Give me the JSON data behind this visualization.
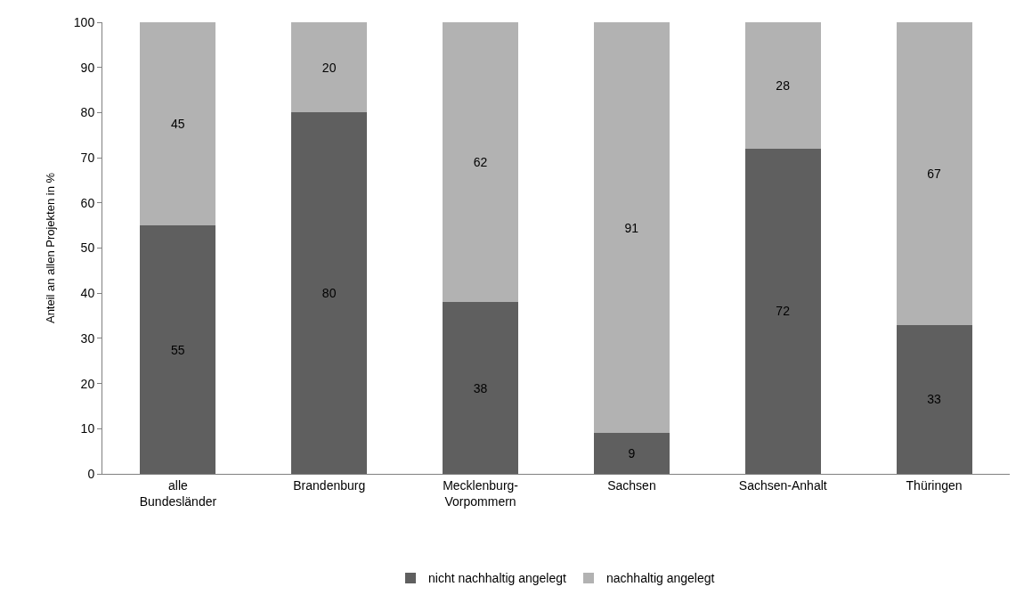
{
  "chart_data": {
    "type": "bar",
    "stacked": true,
    "ylabel": "Anteil an allen Projekten in %",
    "categories": [
      "alle Bundesländer",
      "Brandenburg",
      "Mecklenburg-Vorpommern",
      "Sachsen",
      "Sachsen-Anhalt",
      "Thüringen"
    ],
    "series": [
      {
        "name": "nicht nachhaltig angelegt",
        "color": "#5f5f5f",
        "values": [
          55,
          80,
          38,
          9,
          72,
          33
        ]
      },
      {
        "name": "nachhaltig angelegt",
        "color": "#b2b2b2",
        "values": [
          45,
          20,
          62,
          91,
          28,
          67
        ]
      }
    ],
    "ylim": [
      0,
      100
    ],
    "yticks": [
      0,
      10,
      20,
      30,
      40,
      50,
      60,
      70,
      80,
      90,
      100
    ],
    "data_labels": true,
    "grid": false,
    "legend": "bottom"
  }
}
